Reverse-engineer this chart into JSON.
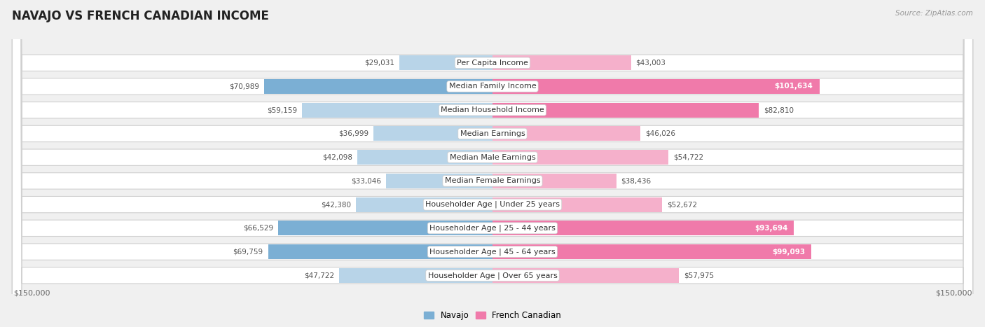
{
  "title": "NAVAJO VS FRENCH CANADIAN INCOME",
  "source": "Source: ZipAtlas.com",
  "categories": [
    "Per Capita Income",
    "Median Family Income",
    "Median Household Income",
    "Median Earnings",
    "Median Male Earnings",
    "Median Female Earnings",
    "Householder Age | Under 25 years",
    "Householder Age | 25 - 44 years",
    "Householder Age | 45 - 64 years",
    "Householder Age | Over 65 years"
  ],
  "navajo_values": [
    29031,
    70989,
    59159,
    36999,
    42098,
    33046,
    42380,
    66529,
    69759,
    47722
  ],
  "french_values": [
    43003,
    101634,
    82810,
    46026,
    54722,
    38436,
    52672,
    93694,
    99093,
    57975
  ],
  "navajo_labels": [
    "$29,031",
    "$70,989",
    "$59,159",
    "$36,999",
    "$42,098",
    "$33,046",
    "$42,380",
    "$66,529",
    "$69,759",
    "$47,722"
  ],
  "french_labels": [
    "$43,003",
    "$101,634",
    "$82,810",
    "$46,026",
    "$54,722",
    "$38,436",
    "$52,672",
    "$93,694",
    "$99,093",
    "$57,975"
  ],
  "max_value": 150000,
  "navajo_color": "#7bafd4",
  "navajo_color_light": "#b8d4e8",
  "french_color": "#f07aaa",
  "french_color_light": "#f5b0cb",
  "bg_color": "#f0f0f0",
  "row_color": "#e8e8e8",
  "axis_label_left": "$150,000",
  "axis_label_right": "$150,000",
  "legend_navajo": "Navajo",
  "legend_french": "French Canadian",
  "high_value_threshold": 85000
}
